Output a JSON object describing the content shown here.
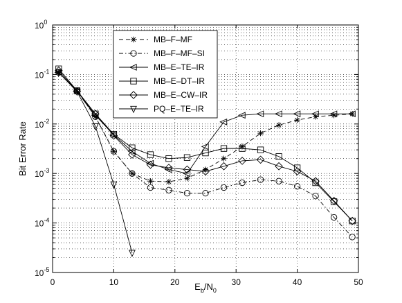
{
  "chart_data": {
    "type": "line",
    "xlabel": "E_b/N_0",
    "ylabel": "Bit Error Rate",
    "xlim": [
      0,
      50
    ],
    "ylim": [
      1e-05,
      1
    ],
    "yscale": "log",
    "grid": true,
    "legend_position": "top-left",
    "x_ticks": [
      "0",
      "10",
      "20",
      "30",
      "40",
      "50"
    ],
    "series": [
      {
        "name": "MB–F–MF",
        "marker": "asterisk",
        "line": "dashed",
        "x": [
          1,
          4,
          7,
          10,
          13,
          16,
          19,
          22,
          25,
          28,
          31,
          34,
          37,
          40,
          43,
          46,
          49
        ],
        "y": [
          0.11,
          0.046,
          0.014,
          0.0028,
          0.001,
          0.0007,
          0.00068,
          0.0008,
          0.0012,
          0.002,
          0.0035,
          0.0065,
          0.0095,
          0.012,
          0.014,
          0.015,
          0.016
        ]
      },
      {
        "name": "MB–F–MF–SI",
        "marker": "circle",
        "line": "dashdot",
        "x": [
          1,
          4,
          7,
          10,
          13,
          16,
          19,
          22,
          25,
          28,
          31,
          34,
          37,
          40,
          43,
          46,
          49
        ],
        "y": [
          0.11,
          0.046,
          0.014,
          0.0028,
          0.001,
          0.00052,
          0.00046,
          0.0004,
          0.0004,
          0.00052,
          0.00065,
          0.00075,
          0.0007,
          0.00055,
          0.00035,
          0.00013,
          5.2e-05
        ]
      },
      {
        "name": "MB–E–TE–IR",
        "marker": "triangle-left",
        "line": "solid",
        "x": [
          1,
          4,
          7,
          10,
          13,
          16,
          19,
          22,
          25,
          28,
          31,
          34,
          37,
          40,
          43,
          46,
          49
        ],
        "y": [
          0.11,
          0.046,
          0.015,
          0.006,
          0.0028,
          0.0016,
          0.0012,
          0.001,
          0.0035,
          0.011,
          0.015,
          0.016,
          0.016,
          0.016,
          0.016,
          0.016,
          0.016
        ]
      },
      {
        "name": "MB–E–DT–IR",
        "marker": "square",
        "line": "solid",
        "x": [
          1,
          4,
          7,
          10,
          13,
          16,
          19,
          22,
          25,
          28,
          31,
          34,
          37,
          40,
          43,
          46,
          49
        ],
        "y": [
          0.13,
          0.047,
          0.016,
          0.0062,
          0.0033,
          0.0024,
          0.002,
          0.0021,
          0.0026,
          0.0032,
          0.0032,
          0.003,
          0.0022,
          0.0013,
          0.00065,
          0.00027,
          0.00011
        ]
      },
      {
        "name": "MB–E–CW–IR",
        "marker": "diamond",
        "line": "solid",
        "x": [
          1,
          4,
          7,
          10,
          13,
          16,
          19,
          22,
          25,
          28,
          31,
          34,
          37,
          40,
          43,
          46,
          49
        ],
        "y": [
          0.12,
          0.046,
          0.016,
          0.0058,
          0.0024,
          0.0015,
          0.0013,
          0.0012,
          0.0011,
          0.0014,
          0.0018,
          0.0019,
          0.0014,
          0.0011,
          0.0007,
          0.00028,
          0.00011
        ]
      },
      {
        "name": "PQ–E–TE–IR",
        "marker": "triangle-down",
        "line": "solid",
        "x": [
          1,
          4,
          7,
          10,
          13
        ],
        "y": [
          0.11,
          0.045,
          0.009,
          0.0006,
          2.5e-05
        ]
      }
    ]
  }
}
